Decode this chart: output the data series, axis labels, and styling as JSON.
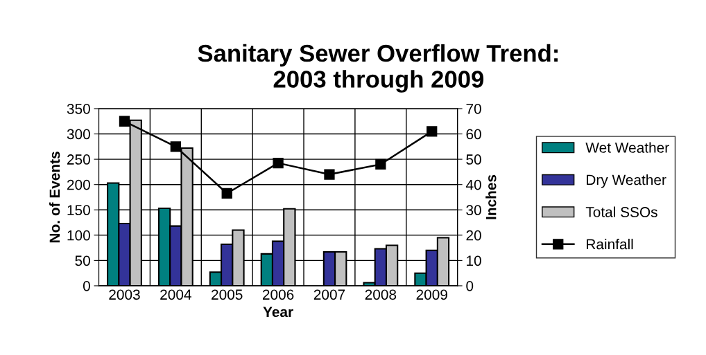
{
  "chart_data": {
    "type": "bar",
    "title": "Sanitary Sewer Overflow Trend:\n2003 through 2009",
    "xlabel": "Year",
    "ylabel": "No. of Events",
    "y2label": "Inches",
    "categories": [
      "2003",
      "2004",
      "2005",
      "2006",
      "2007",
      "2008",
      "2009"
    ],
    "series": [
      {
        "name": "Wet Weather",
        "color": "#008080",
        "values": [
          203,
          153,
          27,
          63,
          0,
          6,
          25
        ]
      },
      {
        "name": "Dry Weather",
        "color": "#333399",
        "values": [
          123,
          118,
          82,
          88,
          67,
          73,
          70
        ]
      },
      {
        "name": "Total SSOs",
        "color": "#c0c0c0",
        "values": [
          327,
          272,
          110,
          152,
          67,
          80,
          95
        ]
      },
      {
        "name": "Rainfall",
        "type": "line",
        "axis": "y2",
        "color": "#000000",
        "marker": "square",
        "values": [
          65,
          55,
          36.5,
          48.5,
          44,
          48,
          61
        ]
      }
    ],
    "ylim": [
      0,
      350
    ],
    "yticks": [
      0,
      50,
      100,
      150,
      200,
      250,
      300,
      350
    ],
    "y2lim": [
      0,
      70
    ],
    "y2ticks": [
      0,
      10,
      20,
      30,
      40,
      50,
      60,
      70
    ],
    "grid": true,
    "legend": "right"
  }
}
